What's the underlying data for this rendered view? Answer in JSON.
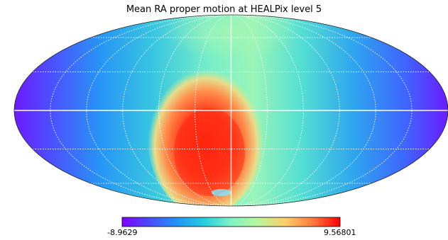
{
  "chart_data": {
    "type": "heatmap",
    "projection": "mollweide",
    "title": "Mean RA proper motion at HEALPix level 5",
    "colormap": "rainbow",
    "colorbar": {
      "min": -8.9629,
      "max": 9.56801,
      "min_label": "-8.9629",
      "max_label": "9.56801",
      "placement": "bottom"
    },
    "graticule": {
      "shown": true,
      "style": "dotted",
      "color": "#ffffff"
    },
    "colors": [
      "#6a1bff",
      "#3a67ff",
      "#1ea2f0",
      "#42ced8",
      "#7ef2c4",
      "#c2f19e",
      "#fbc36e",
      "#ff7443",
      "#ff1e0c"
    ]
  }
}
